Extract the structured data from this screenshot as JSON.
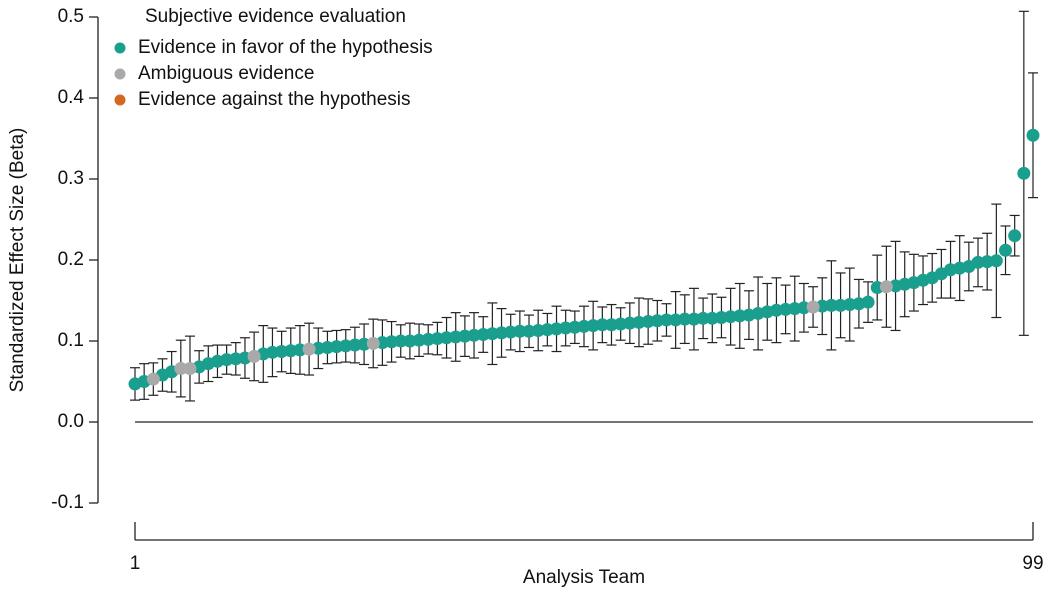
{
  "chart_data": {
    "type": "errorbar-scatter",
    "legend_title": "Subjective evidence evaluation",
    "y_label": "Standardized Effect Size (Beta)",
    "x_label": "Analysis Team",
    "xlim": [
      1,
      99
    ],
    "xticks": [
      1,
      99
    ],
    "ylim": [
      -0.1,
      0.5
    ],
    "yticks": [
      0.5,
      0.4,
      0.3,
      0.2,
      0.1,
      {
        "value": 0,
        "label": "0.0"
      },
      -0.1
    ],
    "legend_position": "upper left",
    "series": [
      {
        "name": "Evidence in favor of the hypothesis",
        "color": "#1a9f8e",
        "x": [
          1,
          2,
          4,
          5,
          8,
          9,
          10,
          11,
          12,
          13,
          15,
          16,
          17,
          18,
          19,
          21,
          22,
          23,
          24,
          25,
          26,
          28,
          29,
          30,
          31,
          32,
          33,
          34,
          35,
          36,
          37,
          38,
          39,
          40,
          41,
          42,
          43,
          44,
          45,
          46,
          47,
          48,
          49,
          50,
          51,
          52,
          53,
          54,
          55,
          56,
          57,
          58,
          59,
          60,
          61,
          62,
          63,
          64,
          65,
          66,
          67,
          68,
          69,
          70,
          71,
          72,
          73,
          74,
          76,
          77,
          78,
          79,
          80,
          81,
          82,
          84,
          85,
          86,
          87,
          88,
          89,
          90,
          91,
          92,
          93,
          94,
          95,
          96,
          97,
          98,
          99
        ],
        "values": [
          0.047,
          0.05,
          0.058,
          0.062,
          0.068,
          0.072,
          0.075,
          0.077,
          0.078,
          0.079,
          0.084,
          0.086,
          0.087,
          0.088,
          0.089,
          0.091,
          0.092,
          0.093,
          0.094,
          0.095,
          0.096,
          0.098,
          0.099,
          0.1,
          0.1,
          0.101,
          0.102,
          0.103,
          0.104,
          0.105,
          0.106,
          0.107,
          0.108,
          0.109,
          0.11,
          0.111,
          0.112,
          0.112,
          0.113,
          0.114,
          0.115,
          0.116,
          0.117,
          0.118,
          0.119,
          0.12,
          0.12,
          0.121,
          0.122,
          0.123,
          0.124,
          0.125,
          0.126,
          0.126,
          0.127,
          0.127,
          0.128,
          0.128,
          0.129,
          0.13,
          0.131,
          0.132,
          0.134,
          0.136,
          0.138,
          0.139,
          0.14,
          0.141,
          0.143,
          0.144,
          0.144,
          0.145,
          0.146,
          0.148,
          0.166,
          0.168,
          0.17,
          0.172,
          0.175,
          0.178,
          0.183,
          0.188,
          0.19,
          0.192,
          0.197,
          0.198,
          0.199,
          0.212,
          0.23,
          0.307,
          0.354
        ],
        "errors": [
          0.02,
          0.022,
          0.02,
          0.025,
          0.02,
          0.022,
          0.02,
          0.018,
          0.02,
          0.025,
          0.035,
          0.03,
          0.025,
          0.028,
          0.03,
          0.025,
          0.02,
          0.02,
          0.02,
          0.022,
          0.025,
          0.028,
          0.025,
          0.02,
          0.022,
          0.02,
          0.018,
          0.02,
          0.025,
          0.03,
          0.025,
          0.028,
          0.022,
          0.038,
          0.03,
          0.022,
          0.025,
          0.02,
          0.025,
          0.02,
          0.028,
          0.022,
          0.02,
          0.025,
          0.03,
          0.022,
          0.025,
          0.02,
          0.025,
          0.03,
          0.028,
          0.025,
          0.02,
          0.035,
          0.03,
          0.038,
          0.025,
          0.03,
          0.025,
          0.035,
          0.04,
          0.03,
          0.045,
          0.035,
          0.04,
          0.03,
          0.04,
          0.03,
          0.035,
          0.055,
          0.04,
          0.045,
          0.03,
          0.025,
          0.04,
          0.055,
          0.04,
          0.035,
          0.03,
          0.03,
          0.03,
          0.035,
          0.04,
          0.03,
          0.03,
          0.035,
          0.07,
          0.03,
          0.025,
          0.2,
          0.077
        ]
      },
      {
        "name": "Ambiguous evidence",
        "color": "#a9a9a9",
        "x": [
          3,
          6,
          7,
          14,
          20,
          27,
          75,
          83
        ],
        "values": [
          0.053,
          0.066,
          0.066,
          0.081,
          0.09,
          0.097,
          0.142,
          0.167
        ],
        "errors": [
          0.02,
          0.035,
          0.04,
          0.03,
          0.032,
          0.03,
          0.025,
          0.05
        ]
      },
      {
        "name": "Evidence against the hypothesis",
        "color": "#d2691e",
        "x": [],
        "values": [],
        "errors": []
      }
    ]
  }
}
